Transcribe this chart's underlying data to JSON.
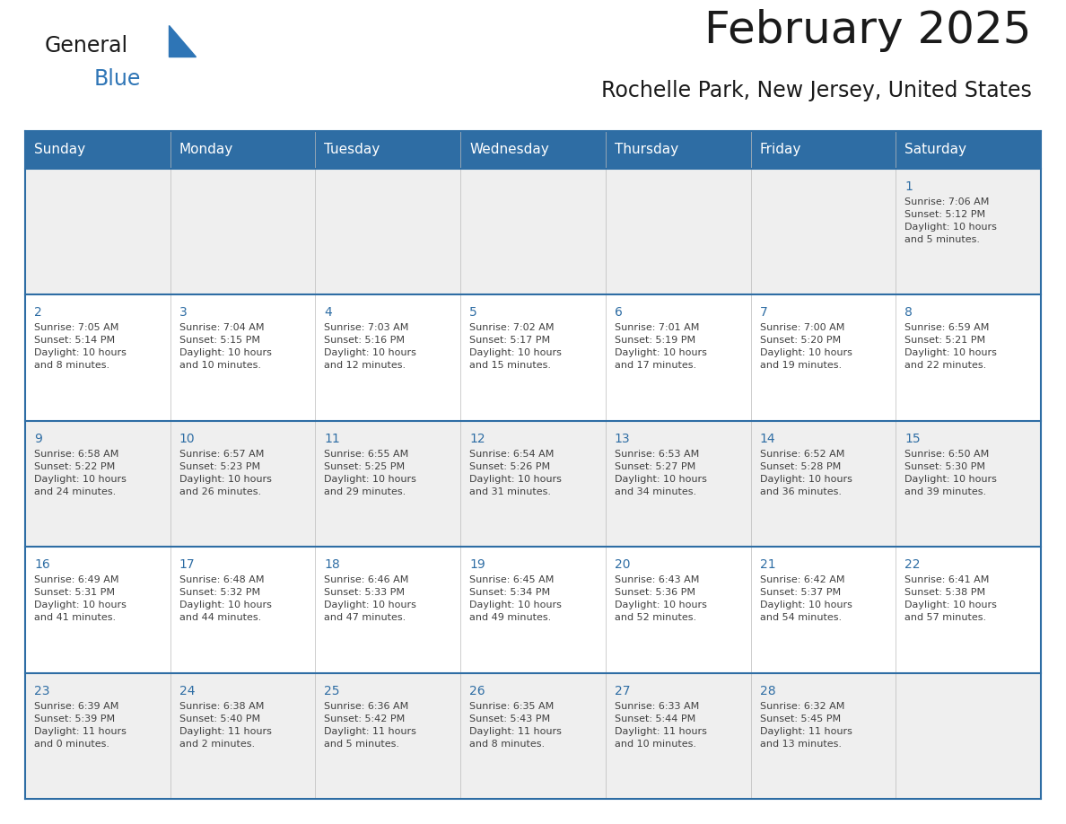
{
  "title": "February 2025",
  "subtitle": "Rochelle Park, New Jersey, United States",
  "header_color": "#2E6DA4",
  "header_text_color": "#FFFFFF",
  "row_bg_odd": "#EFEFEF",
  "row_bg_even": "#FFFFFF",
  "border_color": "#2E6DA4",
  "day_num_color": "#2E6DA4",
  "text_color": "#404040",
  "days_of_week": [
    "Sunday",
    "Monday",
    "Tuesday",
    "Wednesday",
    "Thursday",
    "Friday",
    "Saturday"
  ],
  "weeks": [
    [
      {
        "day": null,
        "info": null
      },
      {
        "day": null,
        "info": null
      },
      {
        "day": null,
        "info": null
      },
      {
        "day": null,
        "info": null
      },
      {
        "day": null,
        "info": null
      },
      {
        "day": null,
        "info": null
      },
      {
        "day": "1",
        "info": "Sunrise: 7:06 AM\nSunset: 5:12 PM\nDaylight: 10 hours\nand 5 minutes."
      }
    ],
    [
      {
        "day": "2",
        "info": "Sunrise: 7:05 AM\nSunset: 5:14 PM\nDaylight: 10 hours\nand 8 minutes."
      },
      {
        "day": "3",
        "info": "Sunrise: 7:04 AM\nSunset: 5:15 PM\nDaylight: 10 hours\nand 10 minutes."
      },
      {
        "day": "4",
        "info": "Sunrise: 7:03 AM\nSunset: 5:16 PM\nDaylight: 10 hours\nand 12 minutes."
      },
      {
        "day": "5",
        "info": "Sunrise: 7:02 AM\nSunset: 5:17 PM\nDaylight: 10 hours\nand 15 minutes."
      },
      {
        "day": "6",
        "info": "Sunrise: 7:01 AM\nSunset: 5:19 PM\nDaylight: 10 hours\nand 17 minutes."
      },
      {
        "day": "7",
        "info": "Sunrise: 7:00 AM\nSunset: 5:20 PM\nDaylight: 10 hours\nand 19 minutes."
      },
      {
        "day": "8",
        "info": "Sunrise: 6:59 AM\nSunset: 5:21 PM\nDaylight: 10 hours\nand 22 minutes."
      }
    ],
    [
      {
        "day": "9",
        "info": "Sunrise: 6:58 AM\nSunset: 5:22 PM\nDaylight: 10 hours\nand 24 minutes."
      },
      {
        "day": "10",
        "info": "Sunrise: 6:57 AM\nSunset: 5:23 PM\nDaylight: 10 hours\nand 26 minutes."
      },
      {
        "day": "11",
        "info": "Sunrise: 6:55 AM\nSunset: 5:25 PM\nDaylight: 10 hours\nand 29 minutes."
      },
      {
        "day": "12",
        "info": "Sunrise: 6:54 AM\nSunset: 5:26 PM\nDaylight: 10 hours\nand 31 minutes."
      },
      {
        "day": "13",
        "info": "Sunrise: 6:53 AM\nSunset: 5:27 PM\nDaylight: 10 hours\nand 34 minutes."
      },
      {
        "day": "14",
        "info": "Sunrise: 6:52 AM\nSunset: 5:28 PM\nDaylight: 10 hours\nand 36 minutes."
      },
      {
        "day": "15",
        "info": "Sunrise: 6:50 AM\nSunset: 5:30 PM\nDaylight: 10 hours\nand 39 minutes."
      }
    ],
    [
      {
        "day": "16",
        "info": "Sunrise: 6:49 AM\nSunset: 5:31 PM\nDaylight: 10 hours\nand 41 minutes."
      },
      {
        "day": "17",
        "info": "Sunrise: 6:48 AM\nSunset: 5:32 PM\nDaylight: 10 hours\nand 44 minutes."
      },
      {
        "day": "18",
        "info": "Sunrise: 6:46 AM\nSunset: 5:33 PM\nDaylight: 10 hours\nand 47 minutes."
      },
      {
        "day": "19",
        "info": "Sunrise: 6:45 AM\nSunset: 5:34 PM\nDaylight: 10 hours\nand 49 minutes."
      },
      {
        "day": "20",
        "info": "Sunrise: 6:43 AM\nSunset: 5:36 PM\nDaylight: 10 hours\nand 52 minutes."
      },
      {
        "day": "21",
        "info": "Sunrise: 6:42 AM\nSunset: 5:37 PM\nDaylight: 10 hours\nand 54 minutes."
      },
      {
        "day": "22",
        "info": "Sunrise: 6:41 AM\nSunset: 5:38 PM\nDaylight: 10 hours\nand 57 minutes."
      }
    ],
    [
      {
        "day": "23",
        "info": "Sunrise: 6:39 AM\nSunset: 5:39 PM\nDaylight: 11 hours\nand 0 minutes."
      },
      {
        "day": "24",
        "info": "Sunrise: 6:38 AM\nSunset: 5:40 PM\nDaylight: 11 hours\nand 2 minutes."
      },
      {
        "day": "25",
        "info": "Sunrise: 6:36 AM\nSunset: 5:42 PM\nDaylight: 11 hours\nand 5 minutes."
      },
      {
        "day": "26",
        "info": "Sunrise: 6:35 AM\nSunset: 5:43 PM\nDaylight: 11 hours\nand 8 minutes."
      },
      {
        "day": "27",
        "info": "Sunrise: 6:33 AM\nSunset: 5:44 PM\nDaylight: 11 hours\nand 10 minutes."
      },
      {
        "day": "28",
        "info": "Sunrise: 6:32 AM\nSunset: 5:45 PM\nDaylight: 11 hours\nand 13 minutes."
      },
      {
        "day": null,
        "info": null
      }
    ]
  ],
  "header_fontsize": 11,
  "day_num_fontsize": 10,
  "info_fontsize": 8,
  "title_fontsize": 36,
  "subtitle_fontsize": 17,
  "logo_general_fontsize": 17,
  "logo_blue_fontsize": 17
}
